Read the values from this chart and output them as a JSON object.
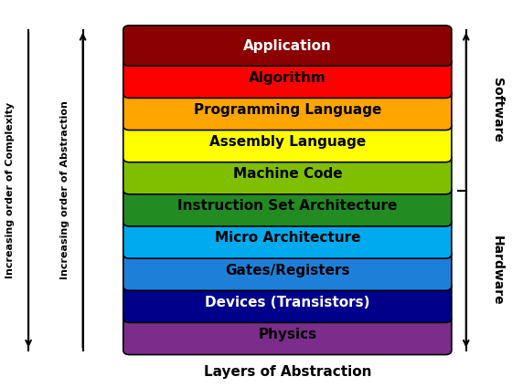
{
  "layers": [
    {
      "label": "Application",
      "color": "#8B0000",
      "text_color": "white"
    },
    {
      "label": "Algorithm",
      "color": "#FF0000",
      "text_color": "black"
    },
    {
      "label": "Programming Language",
      "color": "#FFA500",
      "text_color": "black"
    },
    {
      "label": "Assembly Language",
      "color": "#FFFF00",
      "text_color": "black"
    },
    {
      "label": "Machine Code",
      "color": "#7FBF00",
      "text_color": "black"
    },
    {
      "label": "Instruction Set Architecture",
      "color": "#228B22",
      "text_color": "black"
    },
    {
      "label": "Micro Architecture",
      "color": "#00AAEE",
      "text_color": "black"
    },
    {
      "label": "Gates/Registers",
      "color": "#1E7FD8",
      "text_color": "black"
    },
    {
      "label": "Devices (Transistors)",
      "color": "#00008B",
      "text_color": "white"
    },
    {
      "label": "Physics",
      "color": "#7B2D8B",
      "text_color": "black"
    }
  ],
  "xlabel": "Layers of Abstraction",
  "left_label1": "Increasing order of Complexity",
  "left_label2": "Increasing order of Abstraction",
  "right_label_software": "Software",
  "right_label_hardware": "Hardware",
  "bg_color": "#FFFFFF",
  "font_size_label": 11,
  "font_size_side": 10,
  "font_size_xlabel": 11
}
